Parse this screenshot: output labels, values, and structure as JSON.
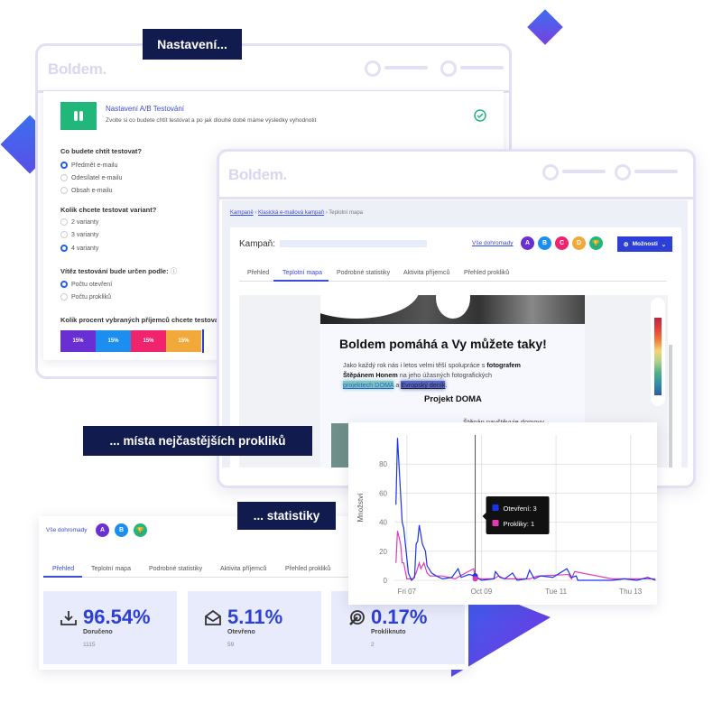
{
  "colors": {
    "navy": "#111b4e",
    "accent": "#3a4bd8",
    "green": "#21b67a",
    "variant_a": "#6a2fd2",
    "variant_b": "#1b8ef0",
    "variant_c": "#f0246d",
    "variant_d": "#f1a93a",
    "winner": "#21b67a",
    "opens": "#1a35f0",
    "clicks": "#e03bb4"
  },
  "callouts": {
    "settings": "Nastavení...",
    "clicks": "... místa nejčastějších prokliků",
    "stats": "... statistiky"
  },
  "window1": {
    "logo": "Boldem.",
    "header": {
      "title": "Nastavení A/B Testování",
      "subtitle": "Zvolte si co budete chtít testovat a po jak dlouhé době máme výsledky vyhodnotit",
      "icon": "test-tubes-icon",
      "status_icon": "check-circle-icon"
    },
    "q1": {
      "label": "Co budete chtít testovat?",
      "options": [
        {
          "label": "Předmět e-mailu",
          "selected": true
        },
        {
          "label": "Odesílatel e-mailu",
          "selected": false
        },
        {
          "label": "Obsah e-mailu",
          "selected": false
        }
      ]
    },
    "q2": {
      "label": "Kolik chcete testovat variant?",
      "options": [
        {
          "label": "2 varianty",
          "selected": false
        },
        {
          "label": "3 varianty",
          "selected": false
        },
        {
          "label": "4 varianty",
          "selected": true
        }
      ]
    },
    "q3": {
      "label": "Vítěz testování bude určen podle:",
      "options": [
        {
          "label": "Počtu otevření",
          "selected": true
        },
        {
          "label": "Počtu prokliků",
          "selected": false
        }
      ]
    },
    "q4": {
      "label": "Kolik procent vybraných příjemců chcete testovat:",
      "segments": [
        {
          "label": "15%",
          "value": 15
        },
        {
          "label": "15%",
          "value": 15
        },
        {
          "label": "15%",
          "value": 15
        },
        {
          "label": "15%",
          "value": 15
        }
      ]
    }
  },
  "window2": {
    "logo": "Boldem.",
    "breadcrumb": [
      "Kampaně",
      "Klasická e-mailová kampaň",
      "Teplotní mapa"
    ],
    "campaign_label": "Kampaň:",
    "all_link": "Vše dohromady",
    "variants": [
      "A",
      "B",
      "C",
      "D"
    ],
    "options_button": "Možnosti",
    "tabs": [
      {
        "label": "Přehled",
        "active": false
      },
      {
        "label": "Teplotní mapa",
        "active": true
      },
      {
        "label": "Podrobné statistiky",
        "active": false
      },
      {
        "label": "Aktivita příjemců",
        "active": false
      },
      {
        "label": "Přehled prokliků",
        "active": false
      }
    ],
    "email": {
      "headline": "Boldem pomáhá a Vy můžete taky!",
      "p1": "Jako každý rok nás i letos velmi těší spolupráce s ",
      "p1_bold": "fotografem",
      "p2_bold": "Štěpánem Honem",
      "p2": " na jeho úžasných fotografických",
      "link1": "projektech DOMA",
      "and": " a ",
      "link2": "Evropský deník",
      "dot": ".",
      "subhead": "Projekt DOMA",
      "teaser": "Štěpán navštěvuje domovy"
    }
  },
  "stats_panel": {
    "all_link": "Vše dohromady",
    "variants": [
      "A",
      "B"
    ],
    "tabs": [
      {
        "label": "Přehled",
        "active": true
      },
      {
        "label": "Teplotní mapa",
        "active": false
      },
      {
        "label": "Podrobné statistiky",
        "active": false
      },
      {
        "label": "Aktivita příjemců",
        "active": false
      },
      {
        "label": "Přehled prokliků",
        "active": false
      }
    ],
    "cards": [
      {
        "value": "96.54%",
        "label": "Doručeno",
        "count": "1115",
        "icon": "download-tray-icon"
      },
      {
        "value": "5.11%",
        "label": "Otevřeno",
        "count": "59",
        "icon": "open-envelope-icon"
      },
      {
        "value": "0.17%",
        "label": "Prokliknuto",
        "count": "2",
        "icon": "click-target-icon"
      }
    ]
  },
  "chart_data": {
    "type": "line",
    "ylabel": "Množství",
    "ylim": [
      0,
      100
    ],
    "yticks": [
      0,
      20,
      40,
      60,
      80
    ],
    "xlim": [
      "10-06 16:00",
      "10-13 17:00"
    ],
    "xticks": [
      {
        "label": "Fri 07",
        "x": "10-07 00:00"
      },
      {
        "label": "Oct 09",
        "x": "10-09 00:00"
      },
      {
        "label": "Tue 11",
        "x": "10-11 00:00"
      },
      {
        "label": "Thu 13",
        "x": "10-13 00:00"
      }
    ],
    "grid": true,
    "tooltip": {
      "x": "10-08 20:00",
      "items": [
        {
          "label": "Otevření: 3",
          "series": 0
        },
        {
          "label": "Prokliky: 1",
          "series": 1
        }
      ]
    },
    "series": [
      {
        "name": "Otevření",
        "points": [
          [
            "10-06 17:00",
            52
          ],
          [
            "10-06 18:00",
            98
          ],
          [
            "10-06 21:00",
            40
          ],
          [
            "10-06 22:00",
            36
          ],
          [
            "10-07 01:00",
            5
          ],
          [
            "10-07 03:00",
            0
          ],
          [
            "10-07 05:00",
            2
          ],
          [
            "10-07 06:00",
            25
          ],
          [
            "10-07 07:00",
            27
          ],
          [
            "10-07 08:00",
            38
          ],
          [
            "10-07 10:00",
            25
          ],
          [
            "10-07 12:00",
            20
          ],
          [
            "10-07 13:00",
            10
          ],
          [
            "10-07 16:00",
            5
          ],
          [
            "10-07 19:00",
            3
          ],
          [
            "10-07 23:00",
            1
          ],
          [
            "10-08 05:00",
            2
          ],
          [
            "10-08 09:00",
            8
          ],
          [
            "10-08 11:00",
            2
          ],
          [
            "10-08 16:00",
            4
          ],
          [
            "10-08 20:00",
            3
          ],
          [
            "10-09 00:00",
            0
          ],
          [
            "10-09 08:00",
            1
          ],
          [
            "10-09 09:00",
            6
          ],
          [
            "10-09 12:00",
            2
          ],
          [
            "10-09 15:00",
            1
          ],
          [
            "10-09 20:00",
            5
          ],
          [
            "10-09 23:00",
            0
          ],
          [
            "10-10 05:00",
            1
          ],
          [
            "10-10 07:00",
            7
          ],
          [
            "10-10 10:00",
            1
          ],
          [
            "10-10 14:00",
            3
          ],
          [
            "10-10 22:00",
            2
          ],
          [
            "10-11 07:00",
            8
          ],
          [
            "10-11 10:00",
            2
          ],
          [
            "10-11 13:00",
            3
          ],
          [
            "10-11 14:00",
            0
          ],
          [
            "10-12 12:00",
            0
          ],
          [
            "10-12 20:00",
            1
          ],
          [
            "10-13 04:00",
            0
          ],
          [
            "10-13 11:00",
            2
          ],
          [
            "10-13 16:00",
            0
          ]
        ]
      },
      {
        "name": "Prokliky",
        "points": [
          [
            "10-06 17:00",
            12
          ],
          [
            "10-06 18:00",
            34
          ],
          [
            "10-06 20:00",
            25
          ],
          [
            "10-06 21:00",
            12
          ],
          [
            "10-06 22:00",
            12
          ],
          [
            "10-07 00:00",
            1
          ],
          [
            "10-07 04:00",
            1
          ],
          [
            "10-07 06:00",
            5
          ],
          [
            "10-07 08:00",
            12
          ],
          [
            "10-07 09:00",
            8
          ],
          [
            "10-07 11:00",
            12
          ],
          [
            "10-07 13:00",
            5
          ],
          [
            "10-07 15:00",
            3
          ],
          [
            "10-07 23:00",
            3
          ],
          [
            "10-08 07:00",
            1
          ],
          [
            "10-08 12:00",
            4
          ],
          [
            "10-08 19:00",
            8
          ],
          [
            "10-08 20:00",
            1
          ],
          [
            "10-09 08:00",
            1
          ],
          [
            "10-09 11:00",
            3
          ],
          [
            "10-09 15:00",
            1
          ],
          [
            "10-10 07:00",
            1
          ],
          [
            "10-10 12:00",
            3
          ],
          [
            "10-11 08:00",
            4
          ],
          [
            "10-11 10:00",
            1
          ],
          [
            "10-11 12:00",
            6
          ],
          [
            "10-12 12:00",
            1
          ],
          [
            "10-13 16:00",
            1
          ]
        ]
      }
    ]
  }
}
